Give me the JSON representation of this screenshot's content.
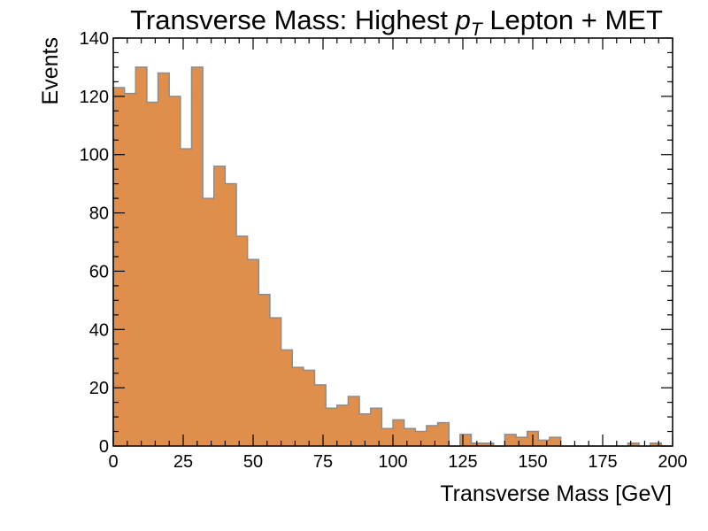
{
  "chart_data": {
    "type": "bar",
    "title_prefix": "Transverse Mass: Highest ",
    "title_math": "p",
    "title_sub": "T",
    "title_suffix": " Lepton + MET",
    "xlabel": "Transverse Mass [GeV]",
    "ylabel": "Events",
    "xlim": [
      0,
      200
    ],
    "ylim": [
      0,
      140
    ],
    "bin_width": 4,
    "x_ticks": [
      0,
      25,
      50,
      75,
      100,
      125,
      150,
      175,
      200
    ],
    "y_ticks": [
      0,
      20,
      40,
      60,
      80,
      100,
      120,
      140
    ],
    "bin_edges_start": [
      0,
      4,
      8,
      12,
      16,
      20,
      24,
      28,
      32,
      36,
      40,
      44,
      48,
      52,
      56,
      60,
      64,
      68,
      72,
      76,
      80,
      84,
      88,
      92,
      96,
      100,
      104,
      108,
      112,
      116,
      120,
      124,
      128,
      132,
      136,
      140,
      144,
      148,
      152,
      156,
      160,
      164,
      168,
      172,
      176,
      180,
      184,
      188,
      192,
      196
    ],
    "values": [
      123,
      121,
      130,
      118,
      128,
      120,
      102,
      130,
      85,
      96,
      90,
      72,
      64,
      52,
      44,
      33,
      27,
      26,
      21,
      13,
      14,
      17,
      11,
      13,
      6,
      9,
      6,
      5,
      7,
      8,
      0,
      4,
      1,
      1,
      0,
      4,
      3,
      5,
      2,
      3,
      0,
      0,
      0,
      0,
      0,
      0,
      1,
      0,
      1,
      0
    ],
    "fill_color": "#e08e4c",
    "edge_color": "#8c8c8c",
    "grid": false,
    "legend": false
  }
}
